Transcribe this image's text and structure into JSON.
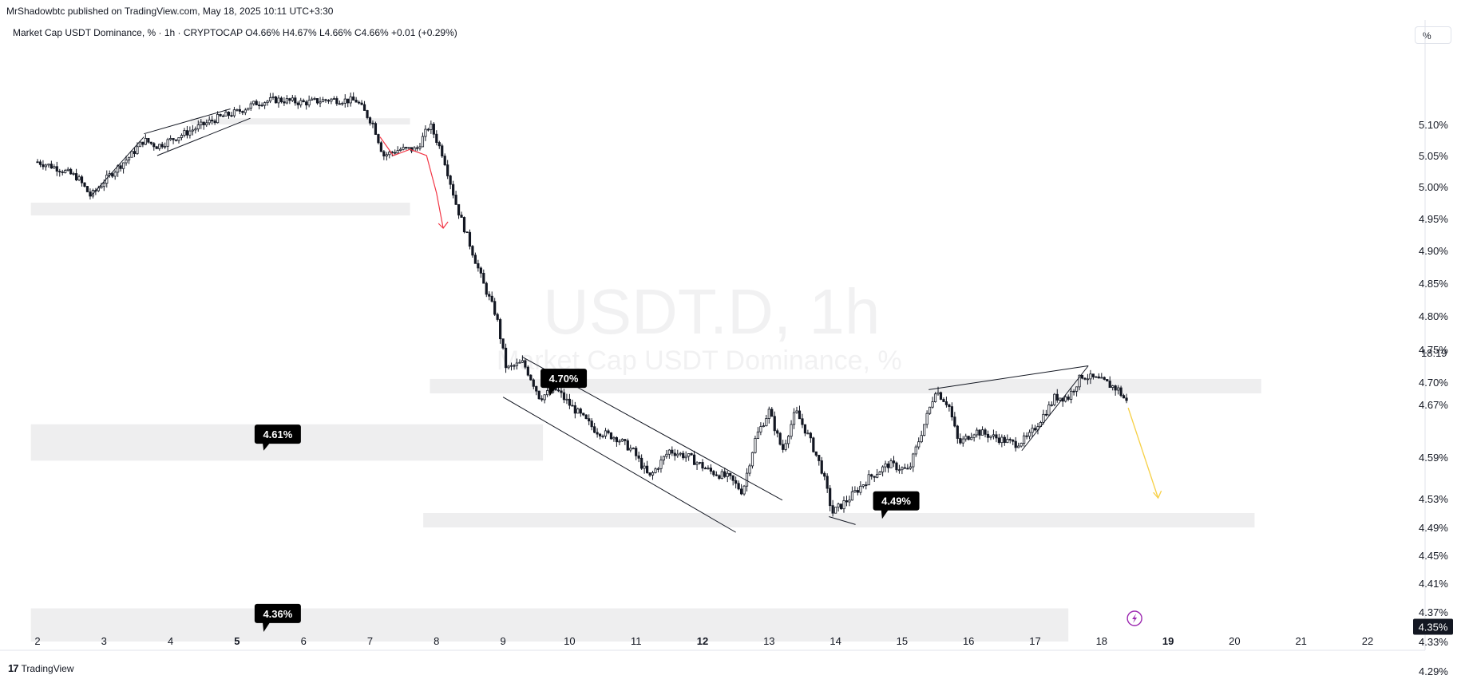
{
  "header": {
    "published_by": "MrShadowbtc published on TradingView.com, May 18, 2025 10:11 UTC+3:30",
    "symbol_desc": "Market Cap USDT Dominance, % · 1h · CRYPTOCAP",
    "ohlc": "O4.66% H4.67% L4.66% C4.66% +0.01 (+0.29%)"
  },
  "scale_button": "%",
  "footer": {
    "logo": "17",
    "brand": "TradingView"
  },
  "watermark": {
    "symbol": "USDT.D, 1h",
    "name": "Market Cap USDT Dominance, %"
  },
  "colors": {
    "candle": "#131722",
    "zone": "#eeeeef",
    "red_path": "#f23645",
    "yellow_arrow": "#f7d046",
    "label_bg": "#000000",
    "lightning": "#9c27b0"
  },
  "icons": {
    "lightning": "lightning-icon"
  },
  "chart_data": {
    "type": "candlestick",
    "title": "Market Cap USDT Dominance, % · 1h · CRYPTOCAP",
    "x_ticks": [
      "2",
      "3",
      "4",
      "5",
      "6",
      "7",
      "8",
      "9",
      "10",
      "11",
      "12",
      "13",
      "14",
      "15",
      "16",
      "17",
      "18",
      "19",
      "20",
      "21",
      "22"
    ],
    "y_ticks": [
      "5.10%",
      "5.05%",
      "5.00%",
      "4.95%",
      "4.90%",
      "4.85%",
      "4.80%",
      "4.75%",
      "4.70%",
      "4.67%",
      "4.59%",
      "4.53%",
      "4.49%",
      "4.45%",
      "4.41%",
      "4.37%",
      "4.33%",
      "4.29%"
    ],
    "y_range": [
      4.27,
      5.14
    ],
    "last_price_label": "4.67%",
    "countdown": "18:19",
    "current_marker": "4.35%",
    "close_path": [
      {
        "day": 2.0,
        "v": 5.04
      },
      {
        "day": 2.3,
        "v": 5.03
      },
      {
        "day": 2.6,
        "v": 5.015
      },
      {
        "day": 2.8,
        "v": 4.985
      },
      {
        "day": 3.1,
        "v": 5.02
      },
      {
        "day": 3.4,
        "v": 5.05
      },
      {
        "day": 3.6,
        "v": 5.075
      },
      {
        "day": 3.8,
        "v": 5.065
      },
      {
        "day": 4.1,
        "v": 5.08
      },
      {
        "day": 4.4,
        "v": 5.095
      },
      {
        "day": 4.7,
        "v": 5.11
      },
      {
        "day": 5.0,
        "v": 5.12
      },
      {
        "day": 5.3,
        "v": 5.135
      },
      {
        "day": 5.6,
        "v": 5.14
      },
      {
        "day": 6.0,
        "v": 5.135
      },
      {
        "day": 6.4,
        "v": 5.14
      },
      {
        "day": 6.8,
        "v": 5.138
      },
      {
        "day": 7.05,
        "v": 5.1
      },
      {
        "day": 7.2,
        "v": 5.05
      },
      {
        "day": 7.45,
        "v": 5.06
      },
      {
        "day": 7.7,
        "v": 5.06
      },
      {
        "day": 7.9,
        "v": 5.1
      },
      {
        "day": 8.1,
        "v": 5.05
      },
      {
        "day": 8.3,
        "v": 4.97
      },
      {
        "day": 8.5,
        "v": 4.91
      },
      {
        "day": 8.7,
        "v": 4.85
      },
      {
        "day": 8.9,
        "v": 4.8
      },
      {
        "day": 9.05,
        "v": 4.72
      },
      {
        "day": 9.3,
        "v": 4.73
      },
      {
        "day": 9.55,
        "v": 4.68
      },
      {
        "day": 9.8,
        "v": 4.69
      },
      {
        "day": 10.1,
        "v": 4.66
      },
      {
        "day": 10.4,
        "v": 4.63
      },
      {
        "day": 10.7,
        "v": 4.62
      },
      {
        "day": 10.95,
        "v": 4.6
      },
      {
        "day": 11.2,
        "v": 4.56
      },
      {
        "day": 11.5,
        "v": 4.6
      },
      {
        "day": 11.8,
        "v": 4.59
      },
      {
        "day": 12.1,
        "v": 4.57
      },
      {
        "day": 12.4,
        "v": 4.56
      },
      {
        "day": 12.6,
        "v": 4.54
      },
      {
        "day": 12.8,
        "v": 4.62
      },
      {
        "day": 13.0,
        "v": 4.66
      },
      {
        "day": 13.2,
        "v": 4.6
      },
      {
        "day": 13.4,
        "v": 4.66
      },
      {
        "day": 13.6,
        "v": 4.62
      },
      {
        "day": 13.8,
        "v": 4.57
      },
      {
        "day": 13.95,
        "v": 4.51
      },
      {
        "day": 14.2,
        "v": 4.53
      },
      {
        "day": 14.5,
        "v": 4.56
      },
      {
        "day": 14.8,
        "v": 4.58
      },
      {
        "day": 15.1,
        "v": 4.57
      },
      {
        "day": 15.3,
        "v": 4.63
      },
      {
        "day": 15.5,
        "v": 4.69
      },
      {
        "day": 15.7,
        "v": 4.67
      },
      {
        "day": 15.85,
        "v": 4.61
      },
      {
        "day": 16.1,
        "v": 4.63
      },
      {
        "day": 16.4,
        "v": 4.62
      },
      {
        "day": 16.7,
        "v": 4.61
      },
      {
        "day": 16.9,
        "v": 4.62
      },
      {
        "day": 17.1,
        "v": 4.65
      },
      {
        "day": 17.3,
        "v": 4.68
      },
      {
        "day": 17.5,
        "v": 4.68
      },
      {
        "day": 17.7,
        "v": 4.71
      },
      {
        "day": 17.9,
        "v": 4.705
      },
      {
        "day": 18.05,
        "v": 4.7
      },
      {
        "day": 18.25,
        "v": 4.69
      },
      {
        "day": 18.4,
        "v": 4.67
      }
    ],
    "zones": [
      {
        "from_day": 1.9,
        "to_day": 7.6,
        "top": 4.975,
        "bottom": 4.955
      },
      {
        "from_day": 4.3,
        "to_day": 7.6,
        "top": 5.11,
        "bottom": 5.1
      },
      {
        "from_day": 7.9,
        "to_day": 20.4,
        "top": 4.705,
        "bottom": 4.685
      },
      {
        "from_day": 1.9,
        "to_day": 9.6,
        "top": 4.64,
        "bottom": 4.585
      },
      {
        "from_day": 7.8,
        "to_day": 20.3,
        "top": 4.51,
        "bottom": 4.49
      },
      {
        "from_day": 1.9,
        "to_day": 17.5,
        "top": 4.375,
        "bottom": 4.33
      }
    ],
    "callouts": [
      {
        "text": "4.70%",
        "day": 9.9,
        "v": 4.706,
        "tip_day": 9.7,
        "tip_v": 4.681
      },
      {
        "text": "4.61%",
        "day": 5.6,
        "v": 4.625,
        "tip_day": 5.4,
        "tip_v": 4.6
      },
      {
        "text": "4.49%",
        "day": 14.9,
        "v": 4.527,
        "tip_day": 14.7,
        "tip_v": 4.502
      },
      {
        "text": "4.36%",
        "day": 5.6,
        "v": 4.368,
        "tip_day": 5.4,
        "tip_v": 4.343
      }
    ],
    "trendlines": [
      {
        "from": [
          2.8,
          4.985
        ],
        "to": [
          3.6,
          5.08
        ]
      },
      {
        "from": [
          3.6,
          5.085
        ],
        "to": [
          4.9,
          5.125
        ]
      },
      {
        "from": [
          3.8,
          5.05
        ],
        "to": [
          5.2,
          5.11
        ]
      },
      {
        "from": [
          9.3,
          4.738
        ],
        "to": [
          13.2,
          4.528
        ]
      },
      {
        "from": [
          9.0,
          4.68
        ],
        "to": [
          12.5,
          4.483
        ]
      },
      {
        "from": [
          15.4,
          4.69
        ],
        "to": [
          17.8,
          4.725
        ]
      },
      {
        "from": [
          16.8,
          4.6
        ],
        "to": [
          17.8,
          4.725
        ]
      },
      {
        "from": [
          13.9,
          4.505
        ],
        "to": [
          14.3,
          4.494
        ]
      }
    ],
    "projection_red": [
      [
        7.15,
        5.08
      ],
      [
        7.35,
        5.05
      ],
      [
        7.6,
        5.06
      ],
      [
        7.85,
        5.05
      ],
      [
        8.0,
        4.99
      ],
      [
        8.1,
        4.935
      ]
    ],
    "projection_yellow": [
      [
        18.4,
        4.665
      ],
      [
        18.85,
        4.531
      ]
    ],
    "lightning_marker_day": 18.4
  }
}
